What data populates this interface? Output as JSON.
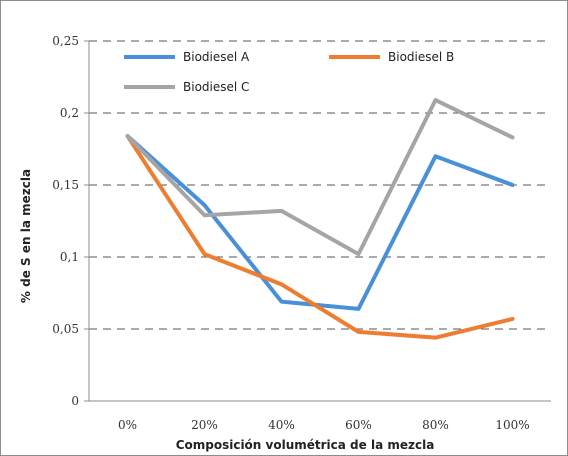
{
  "chart_data": {
    "type": "line",
    "title": "",
    "xlabel": "Composición volumétrica de la mezcla",
    "ylabel": "% de S en la mezcla",
    "categories": [
      "0%",
      "20%",
      "40%",
      "60%",
      "80%",
      "100%"
    ],
    "y_ticks": [
      "0",
      "0,05",
      "0,1",
      "0,15",
      "0,2",
      "0,25"
    ],
    "y_tick_values": [
      0,
      0.05,
      0.1,
      0.15,
      0.2,
      0.25
    ],
    "ylim": [
      0,
      0.25
    ],
    "grid": "horizontal dashed",
    "legend_position": "top",
    "series": [
      {
        "name": "Biodiesel A",
        "color": "#4a90d9",
        "values": [
          0.184,
          0.136,
          0.069,
          0.064,
          0.17,
          0.15
        ]
      },
      {
        "name": "Biodiesel B",
        "color": "#ed7d31",
        "values": [
          0.184,
          0.102,
          0.081,
          0.048,
          0.044,
          0.057
        ]
      },
      {
        "name": "Biodiesel C",
        "color": "#a5a5a5",
        "values": [
          0.184,
          0.129,
          0.132,
          0.102,
          0.209,
          0.183
        ]
      }
    ]
  }
}
